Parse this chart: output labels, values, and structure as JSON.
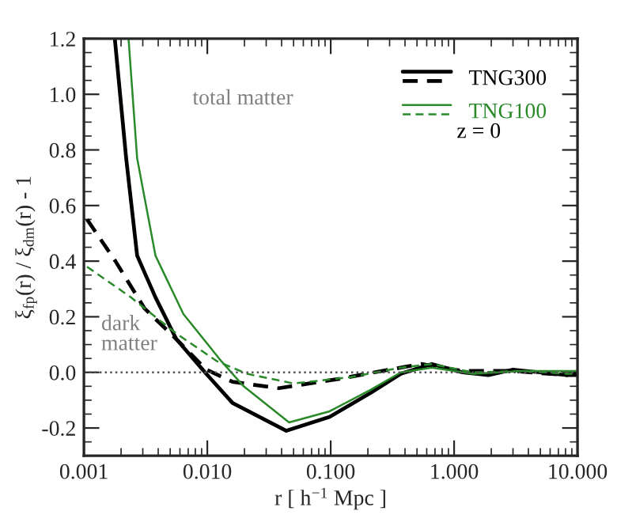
{
  "chart_data": {
    "type": "line",
    "xlabel": "r [ h$^{−1}$ Mpc ]",
    "ylabel": "ξ$_{fp}$(r) / ξ$_{dm}$(r) - 1",
    "log": "x",
    "xlim": [
      0.001,
      10
    ],
    "ylim": [
      -0.3,
      1.2
    ],
    "xticks": [
      {
        "value": 0.001,
        "label": "0.001"
      },
      {
        "value": 0.01,
        "label": "0.010"
      },
      {
        "value": 0.1,
        "label": "0.100"
      },
      {
        "value": 1,
        "label": "1.000"
      },
      {
        "value": 10,
        "label": "10.000"
      }
    ],
    "yticks": [
      {
        "value": -0.2,
        "label": "-0.2"
      },
      {
        "value": 0,
        "label": "0.0"
      },
      {
        "value": 0.2,
        "label": "0.2"
      },
      {
        "value": 0.4,
        "label": "0.4"
      },
      {
        "value": 0.6,
        "label": "0.6"
      },
      {
        "value": 0.8,
        "label": "0.8"
      },
      {
        "value": 1.0,
        "label": "1.0"
      },
      {
        "value": 1.2,
        "label": "1.2"
      }
    ],
    "grid": false,
    "legend": "top right",
    "marker": "none",
    "series": [
      {
        "name": "TNG300",
        "color": "#000000",
        "line_style": "solid",
        "x": [
          0.00178,
          0.0022,
          0.0027,
          0.0038,
          0.0056,
          0.0098,
          0.016,
          0.0437,
          0.098,
          0.21,
          0.37,
          0.66,
          1.17,
          1.9,
          3.0,
          8.2,
          10
        ],
        "values": [
          1.2,
          0.77,
          0.42,
          0.27,
          0.12,
          -0.005,
          -0.11,
          -0.21,
          -0.16,
          -0.074,
          -0.005,
          0.03,
          0.0,
          -0.01,
          0.01,
          -0.01,
          0.0
        ]
      },
      {
        "color": "#000000",
        "line_style": "dashed",
        "x": [
          0.00106,
          0.0018,
          0.0031,
          0.0056,
          0.0098,
          0.016,
          0.038,
          0.118,
          0.3,
          0.54,
          1.17,
          3.0,
          8.2,
          10
        ],
        "values": [
          0.55,
          0.4,
          0.23,
          0.12,
          0.01,
          -0.034,
          -0.057,
          -0.023,
          0.01,
          0.03,
          0.005,
          0.005,
          -0.01,
          -0.01
        ]
      },
      {
        "name": "TNG100",
        "color": "#2a8a2a",
        "line_style": "solid",
        "x": [
          0.0023,
          0.0027,
          0.0038,
          0.0064,
          0.013,
          0.0197,
          0.046,
          0.098,
          0.21,
          0.37,
          0.66,
          1.43,
          3.7,
          8.2,
          10
        ],
        "values": [
          1.2,
          0.77,
          0.42,
          0.21,
          0.04,
          -0.05,
          -0.18,
          -0.14,
          -0.063,
          0.0,
          0.017,
          -0.005,
          0.005,
          0.005,
          0.005
        ]
      },
      {
        "color": "#2a8a2a",
        "line_style": "dashed",
        "x": [
          0.00106,
          0.0024,
          0.0056,
          0.012,
          0.021,
          0.05,
          0.145,
          0.37,
          0.66,
          1.43,
          3.7,
          8.2,
          10
        ],
        "values": [
          0.38,
          0.27,
          0.14,
          0.04,
          -0.005,
          -0.04,
          -0.017,
          0.017,
          0.03,
          0.0,
          0.005,
          -0.005,
          -0.005
        ]
      }
    ],
    "ref_lines": [
      {
        "axis": "y",
        "value": 0,
        "color": "#555555",
        "line_style": "dotted"
      }
    ],
    "annotations": [
      "total matter",
      "dark\nmatter",
      "z = 0"
    ]
  }
}
